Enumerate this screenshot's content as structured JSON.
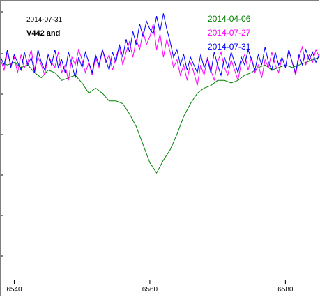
{
  "chart_data": {
    "type": "line",
    "date": "2014-07-31",
    "title": "V442 and",
    "xlabel": "",
    "ylabel": "",
    "xlim": [
      6538,
      6585
    ],
    "ylim": [
      0.4,
      1.55
    ],
    "x_ticks": [
      6540,
      6560,
      6580
    ],
    "grid": false,
    "legend_placement": "top-right",
    "series": [
      {
        "name": "2014-04-06",
        "color": "#008000",
        "x": [
          6538,
          6539,
          6540,
          6541,
          6542,
          6543,
          6544,
          6545,
          6546,
          6547,
          6548,
          6549,
          6550,
          6551,
          6552,
          6553,
          6554,
          6555,
          6556,
          6557,
          6558,
          6559,
          6560,
          6561,
          6562,
          6563,
          6564,
          6565,
          6566,
          6567,
          6568,
          6569,
          6570,
          6571,
          6572,
          6573,
          6574,
          6575,
          6576,
          6577,
          6578,
          6579,
          6580,
          6581,
          6582,
          6583,
          6584,
          6585
        ],
        "values": [
          1.31,
          1.3,
          1.31,
          1.29,
          1.3,
          1.27,
          1.25,
          1.28,
          1.27,
          1.24,
          1.25,
          1.26,
          1.23,
          1.19,
          1.21,
          1.19,
          1.16,
          1.16,
          1.15,
          1.11,
          1.06,
          0.99,
          0.92,
          0.88,
          0.93,
          0.97,
          1.03,
          1.1,
          1.15,
          1.19,
          1.21,
          1.22,
          1.24,
          1.24,
          1.23,
          1.24,
          1.26,
          1.27,
          1.29,
          1.3,
          1.28,
          1.29,
          1.3,
          1.29,
          1.3,
          1.31,
          1.32,
          1.33
        ]
      },
      {
        "name": "2014-07-27",
        "color": "#ff00ff",
        "x": [
          6538,
          6538.5,
          6539,
          6539.5,
          6540,
          6540.5,
          6541,
          6541.5,
          6542,
          6542.5,
          6543,
          6543.5,
          6544,
          6544.5,
          6545,
          6545.5,
          6546,
          6546.5,
          6547,
          6547.5,
          6548,
          6548.5,
          6549,
          6549.5,
          6550,
          6550.5,
          6551,
          6551.5,
          6552,
          6552.5,
          6553,
          6553.5,
          6554,
          6554.5,
          6555,
          6555.5,
          6556,
          6556.5,
          6557,
          6557.5,
          6558,
          6558.5,
          6559,
          6559.5,
          6560,
          6560.5,
          6561,
          6561.5,
          6562,
          6562.5,
          6563,
          6563.5,
          6564,
          6564.5,
          6565,
          6565.5,
          6566,
          6566.5,
          6567,
          6567.5,
          6568,
          6568.5,
          6569,
          6569.5,
          6570,
          6570.5,
          6571,
          6571.5,
          6572,
          6572.5,
          6573,
          6573.5,
          6574,
          6574.5,
          6575,
          6575.5,
          6576,
          6576.5,
          6577,
          6577.5,
          6578,
          6578.5,
          6579,
          6579.5,
          6580,
          6580.5,
          6581,
          6581.5,
          6582,
          6582.5,
          6583,
          6583.5,
          6584,
          6584.5,
          6585
        ],
        "values": [
          1.32,
          1.28,
          1.35,
          1.3,
          1.33,
          1.27,
          1.34,
          1.29,
          1.31,
          1.36,
          1.28,
          1.33,
          1.3,
          1.26,
          1.34,
          1.31,
          1.29,
          1.35,
          1.27,
          1.3,
          1.24,
          1.33,
          1.3,
          1.36,
          1.32,
          1.27,
          1.31,
          1.26,
          1.33,
          1.29,
          1.36,
          1.31,
          1.34,
          1.28,
          1.33,
          1.37,
          1.3,
          1.35,
          1.39,
          1.33,
          1.4,
          1.36,
          1.43,
          1.38,
          1.41,
          1.46,
          1.36,
          1.42,
          1.33,
          1.4,
          1.35,
          1.29,
          1.32,
          1.26,
          1.3,
          1.24,
          1.31,
          1.27,
          1.22,
          1.3,
          1.26,
          1.33,
          1.28,
          1.24,
          1.31,
          1.35,
          1.29,
          1.26,
          1.32,
          1.28,
          1.24,
          1.31,
          1.34,
          1.28,
          1.33,
          1.27,
          1.3,
          1.25,
          1.32,
          1.29,
          1.35,
          1.3,
          1.27,
          1.33,
          1.29,
          1.36,
          1.31,
          1.26,
          1.33,
          1.37,
          1.3,
          1.34,
          1.31,
          1.36,
          1.33
        ]
      },
      {
        "name": "2014-07-31",
        "color": "#0000ff",
        "x": [
          6538,
          6538.5,
          6539,
          6539.5,
          6540,
          6540.5,
          6541,
          6541.5,
          6542,
          6542.5,
          6543,
          6543.5,
          6544,
          6544.5,
          6545,
          6545.5,
          6546,
          6546.5,
          6547,
          6547.5,
          6548,
          6548.5,
          6549,
          6549.5,
          6550,
          6550.5,
          6551,
          6551.5,
          6552,
          6552.5,
          6553,
          6553.5,
          6554,
          6554.5,
          6555,
          6555.5,
          6556,
          6556.5,
          6557,
          6557.5,
          6558,
          6558.5,
          6559,
          6559.5,
          6560,
          6560.5,
          6561,
          6561.5,
          6562,
          6562.5,
          6563,
          6563.5,
          6564,
          6564.5,
          6565,
          6565.5,
          6566,
          6566.5,
          6567,
          6567.5,
          6568,
          6568.5,
          6569,
          6569.5,
          6570,
          6570.5,
          6571,
          6571.5,
          6572,
          6572.5,
          6573,
          6573.5,
          6574,
          6574.5,
          6575,
          6575.5,
          6576,
          6576.5,
          6577,
          6577.5,
          6578,
          6578.5,
          6579,
          6579.5,
          6580,
          6580.5,
          6581,
          6581.5,
          6582,
          6582.5,
          6583,
          6583.5,
          6584,
          6584.5,
          6585
        ],
        "values": [
          1.33,
          1.3,
          1.36,
          1.29,
          1.34,
          1.31,
          1.28,
          1.35,
          1.3,
          1.33,
          1.27,
          1.36,
          1.31,
          1.28,
          1.34,
          1.3,
          1.36,
          1.29,
          1.32,
          1.27,
          1.35,
          1.3,
          1.25,
          1.33,
          1.29,
          1.35,
          1.31,
          1.27,
          1.34,
          1.3,
          1.36,
          1.32,
          1.28,
          1.35,
          1.31,
          1.38,
          1.33,
          1.4,
          1.35,
          1.43,
          1.38,
          1.46,
          1.41,
          1.47,
          1.44,
          1.42,
          1.49,
          1.43,
          1.5,
          1.44,
          1.39,
          1.33,
          1.36,
          1.3,
          1.34,
          1.28,
          1.33,
          1.3,
          1.27,
          1.34,
          1.29,
          1.32,
          1.27,
          1.35,
          1.3,
          1.26,
          1.33,
          1.29,
          1.35,
          1.31,
          1.27,
          1.33,
          1.3,
          1.36,
          1.32,
          1.28,
          1.34,
          1.3,
          1.37,
          1.31,
          1.28,
          1.35,
          1.3,
          1.33,
          1.29,
          1.36,
          1.31,
          1.27,
          1.34,
          1.3,
          1.36,
          1.32,
          1.35,
          1.31,
          1.34
        ]
      }
    ]
  }
}
